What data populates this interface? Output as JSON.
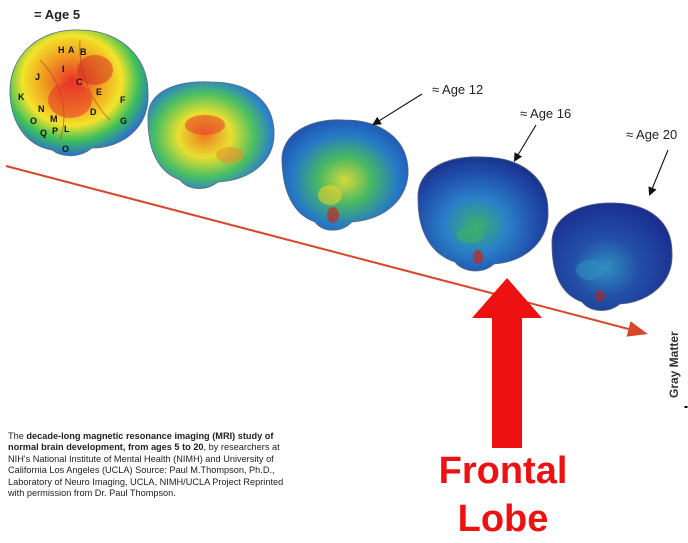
{
  "age_labels": {
    "age5": "= Age 5",
    "age12": "≈ Age 12",
    "age16": "≈ Age 16",
    "age20": "≈ Age 20"
  },
  "axis_label": "Gray Matter",
  "region_letters": [
    "A",
    "B",
    "H",
    "I",
    "J",
    "K",
    "C",
    "N",
    "E",
    "F",
    "D",
    "O",
    "M",
    "Q",
    "P",
    "L",
    "G",
    "O"
  ],
  "caption": {
    "lead": "The ",
    "bold": "decade-long magnetic resonance imaging (MRI) study of normal brain development, from ages 5 to 20",
    "rest": ", by researchers at NIH's National Institute of Mental Health (NIMH) and University of California Los Angeles (UCLA)  Source: Paul M.Thompson, Ph.D., Laboratory of Neuro Imaging, UCLA, NIMH/UCLA  Project Reprinted with permission from Dr. Paul Thompson."
  },
  "callout": {
    "line1": "Frontal",
    "line2": "Lobe"
  },
  "colors": {
    "arrow_red": "#ee1111",
    "trend_line": "#d9472b",
    "gray_high": "#e8302a",
    "gray_low": "#1a2f8f"
  }
}
